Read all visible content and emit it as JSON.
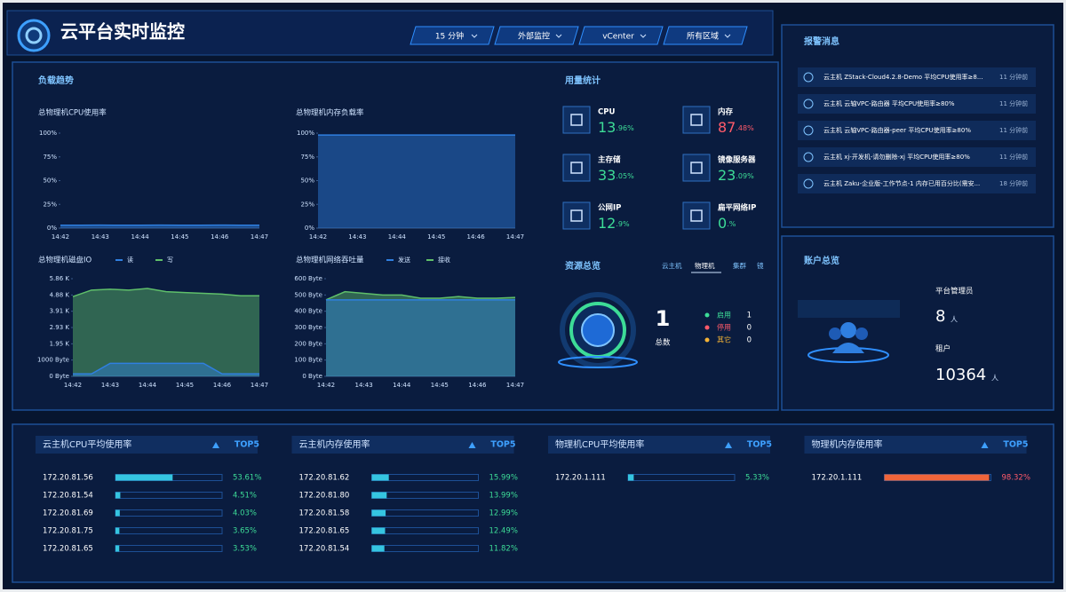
{
  "header": {
    "title": "云平台实时监控",
    "filters": [
      "15 分钟",
      "外部监控",
      "vCenter",
      "所有区域"
    ]
  },
  "load_trend": {
    "title": "负载趋势"
  },
  "chart_data": [
    {
      "type": "area",
      "title": "总物理机CPU使用率",
      "categories": [
        "14:42",
        null,
        "14:43",
        null,
        "14:44",
        null,
        "14:45",
        null,
        "14:46",
        null,
        "14:47"
      ],
      "values": [
        3,
        3,
        3.2,
        3,
        3,
        3.1,
        3,
        3,
        3.2,
        3,
        3
      ],
      "color": "#2f7fe0",
      "ylim": [
        0,
        100
      ],
      "yticks": [
        {
          "value": 0,
          "label": "0%"
        },
        {
          "value": 25,
          "label": "25%"
        },
        {
          "value": 50,
          "label": "50%"
        },
        {
          "value": 75,
          "label": "75%"
        },
        {
          "value": 100,
          "label": "100%"
        }
      ]
    },
    {
      "type": "area",
      "title": "总物理机内存负载率",
      "categories": [
        "14:42",
        null,
        "14:43",
        null,
        "14:44",
        null,
        "14:45",
        null,
        "14:46",
        null,
        "14:47"
      ],
      "values": [
        98,
        98,
        98,
        98,
        98,
        98,
        98,
        98,
        98,
        98,
        98
      ],
      "color": "#2f7fe0",
      "ylim": [
        0,
        100
      ],
      "yticks": [
        {
          "value": 0,
          "label": "0%"
        },
        {
          "value": 25,
          "label": "25%"
        },
        {
          "value": 50,
          "label": "50%"
        },
        {
          "value": 75,
          "label": "75%"
        },
        {
          "value": 100,
          "label": "100%"
        }
      ]
    },
    {
      "type": "area",
      "title": "总物理机磁盘IO",
      "categories": [
        "14:42",
        null,
        "14:43",
        null,
        "14:44",
        null,
        "14:45",
        null,
        "14:46",
        null,
        "14:47"
      ],
      "series": [
        {
          "name": "读",
          "color": "#2f7fe0",
          "values": [
            150,
            150,
            800,
            800,
            800,
            800,
            800,
            800,
            150,
            150,
            150
          ]
        },
        {
          "name": "写",
          "color": "#5fbf6a",
          "values": [
            4900,
            5300,
            5350,
            5300,
            5400,
            5200,
            5150,
            5100,
            5050,
            4950,
            4950
          ]
        }
      ],
      "ylim": [
        0,
        6000
      ],
      "yticks": [
        {
          "value": 0,
          "label": "0 Byte"
        },
        {
          "value": 1000,
          "label": "1000 Byte"
        },
        {
          "value": 2000,
          "label": "1.95 K"
        },
        {
          "value": 3000,
          "label": "2.93 K"
        },
        {
          "value": 4000,
          "label": "3.91 K"
        },
        {
          "value": 5000,
          "label": "4.88 K"
        },
        {
          "value": 6000,
          "label": "5.86 K"
        }
      ]
    },
    {
      "type": "area",
      "title": "总物理机网络吞吐量",
      "categories": [
        "14:42",
        null,
        "14:43",
        null,
        "14:44",
        null,
        "14:45",
        null,
        "14:46",
        null,
        "14:47"
      ],
      "series": [
        {
          "name": "发送",
          "color": "#2f7fe0",
          "values": [
            470,
            470,
            470,
            470,
            470,
            470,
            470,
            470,
            470,
            470,
            470
          ]
        },
        {
          "name": "接收",
          "color": "#5fbf6a",
          "values": [
            470,
            520,
            510,
            500,
            500,
            480,
            480,
            490,
            480,
            480,
            485
          ]
        }
      ],
      "ylim": [
        0,
        600
      ],
      "yticks": [
        {
          "value": 0,
          "label": "0 Byte"
        },
        {
          "value": 100,
          "label": "100 Byte"
        },
        {
          "value": 200,
          "label": "200 Byte"
        },
        {
          "value": 300,
          "label": "300 Byte"
        },
        {
          "value": 400,
          "label": "400 Byte"
        },
        {
          "value": 500,
          "label": "500 Byte"
        },
        {
          "value": 600,
          "label": "600 Byte"
        }
      ]
    }
  ],
  "usage": {
    "title": "用量统计",
    "items": [
      {
        "label": "CPU",
        "integer": "13",
        "fraction": ".96%",
        "color": "#3ddc97"
      },
      {
        "label": "内存",
        "integer": "87",
        "fraction": ".48%",
        "color": "#ff5a6a"
      },
      {
        "label": "主存储",
        "integer": "33",
        "fraction": ".05%",
        "color": "#3ddc97"
      },
      {
        "label": "镜像服务器",
        "integer": "23",
        "fraction": ".09%",
        "color": "#3ddc97"
      },
      {
        "label": "公网IP",
        "integer": "12",
        "fraction": ".9%",
        "color": "#3ddc97"
      },
      {
        "label": "扁平网络IP",
        "integer": "0",
        "fraction": ".%",
        "color": "#3ddc97"
      }
    ]
  },
  "resources": {
    "title": "资源总览",
    "tabs": [
      "云主机",
      "物理机",
      "集群",
      "镜"
    ],
    "total": "1",
    "total_label": "总数",
    "legend": [
      {
        "label": "启用",
        "value": "1",
        "color": "#3ddc97"
      },
      {
        "label": "停用",
        "value": "0",
        "color": "#ff5a6a"
      },
      {
        "label": "其它",
        "value": "0",
        "color": "#f5b335"
      }
    ]
  },
  "alerts": {
    "title": "报警消息",
    "items": [
      {
        "text": "云主机 ZStack-Cloud4.2.8-Demo 平均CPU使用率≥8...",
        "time": "11 分钟前"
      },
      {
        "text": "云主机 云轴VPC-路由器 平均CPU使用率≥80%",
        "time": "11 分钟前"
      },
      {
        "text": "云主机 云轴VPC-路由器-peer 平均CPU使用率≥80%",
        "time": "11 分钟前"
      },
      {
        "text": "云主机 xj-开发机-请勿删除-xj 平均CPU使用率≥80%",
        "time": "11 分钟前"
      },
      {
        "text": "云主机 Zaku-企业版-工作节点-1 内存已用百分比(需安...",
        "time": "18 分钟前"
      }
    ]
  },
  "account": {
    "title": "账户总览",
    "admin_label": "平台管理员",
    "admin_count": "8",
    "tenant_label": "租户",
    "tenant_count": "10364",
    "unit": "人"
  },
  "top5": [
    {
      "title": "云主机CPU平均使用率",
      "badge": "TOP5",
      "color": "#35c5e0",
      "value_color": "#3ddc97",
      "rows": [
        {
          "ip": "172.20.81.56",
          "value": 53.61,
          "label": "53.61%"
        },
        {
          "ip": "172.20.81.54",
          "value": 4.51,
          "label": "4.51%"
        },
        {
          "ip": "172.20.81.69",
          "value": 4.03,
          "label": "4.03%"
        },
        {
          "ip": "172.20.81.75",
          "value": 3.65,
          "label": "3.65%"
        },
        {
          "ip": "172.20.81.65",
          "value": 3.53,
          "label": "3.53%"
        }
      ]
    },
    {
      "title": "云主机内存使用率",
      "badge": "TOP5",
      "color": "#35c5e0",
      "value_color": "#3ddc97",
      "rows": [
        {
          "ip": "172.20.81.62",
          "value": 15.99,
          "label": "15.99%"
        },
        {
          "ip": "172.20.81.80",
          "value": 13.99,
          "label": "13.99%"
        },
        {
          "ip": "172.20.81.58",
          "value": 12.99,
          "label": "12.99%"
        },
        {
          "ip": "172.20.81.65",
          "value": 12.49,
          "label": "12.49%"
        },
        {
          "ip": "172.20.81.54",
          "value": 11.82,
          "label": "11.82%"
        }
      ]
    },
    {
      "title": "物理机CPU平均使用率",
      "badge": "TOP5",
      "color": "#35c5e0",
      "value_color": "#3ddc97",
      "rows": [
        {
          "ip": "172.20.1.111",
          "value": 5.33,
          "label": "5.33%"
        }
      ]
    },
    {
      "title": "物理机内存使用率",
      "badge": "TOP5",
      "color": "#f0653a",
      "value_color": "#ff5a6a",
      "rows": [
        {
          "ip": "172.20.1.111",
          "value": 98.32,
          "label": "98.32%"
        }
      ]
    }
  ]
}
